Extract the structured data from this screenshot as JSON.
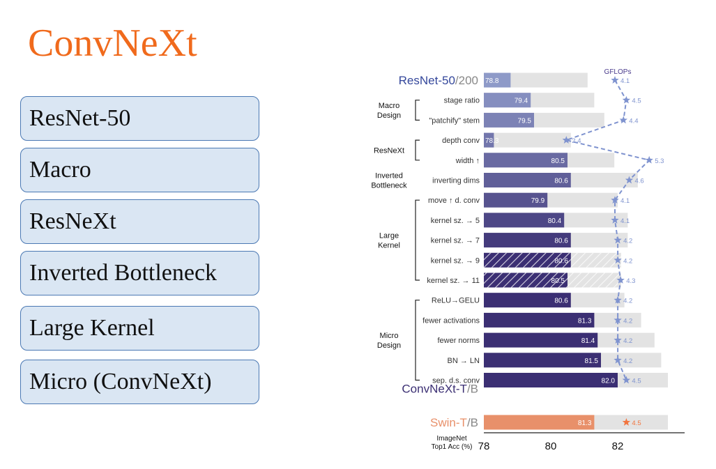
{
  "slide": {
    "title": "ConvNeXt",
    "title_color": "#f06a1c",
    "stages": [
      "ResNet-50",
      "Macro",
      "ResNeXt",
      "Inverted Bottleneck",
      "Large Kernel",
      "Micro (ConvNeXt)"
    ],
    "box_fill": "#dae6f3",
    "box_border": "#4a78b3"
  },
  "chart_data": {
    "type": "bar",
    "xlabel": "ImageNet Top1 Acc (%)",
    "xticks": [
      78,
      80,
      82
    ],
    "xlim": [
      78,
      84.3
    ],
    "gflops_label": "GFLOPs",
    "top_label": {
      "main": "ResNet-50",
      "suffix": "/200"
    },
    "bottom_label": {
      "main": "ConvNeXt-T",
      "suffix": "/B"
    },
    "swin_label": {
      "main": "Swin-T",
      "suffix": "/B"
    },
    "groups": [
      {
        "label": "Macro Design",
        "rows": [
          1,
          2
        ]
      },
      {
        "label": "ResNeXt",
        "rows": [
          3,
          4
        ]
      },
      {
        "label": "Inverted Bottleneck",
        "rows": [
          5
        ]
      },
      {
        "label": "Large Kernel",
        "rows": [
          6,
          7,
          8,
          9,
          10
        ]
      },
      {
        "label": "Micro Design",
        "rows": [
          11,
          12,
          13,
          14,
          15
        ]
      }
    ],
    "rows": [
      {
        "label": "",
        "tiny": 78.8,
        "base": 81.1,
        "gflops": 4.1,
        "hatched": false
      },
      {
        "label": "stage ratio",
        "tiny": 79.4,
        "base": 81.3,
        "gflops": 4.5,
        "hatched": false
      },
      {
        "label": "\"patchify\" stem",
        "tiny": 79.5,
        "base": 81.6,
        "gflops": 4.4,
        "hatched": false
      },
      {
        "label": "depth conv",
        "tiny": 78.3,
        "base": 80.6,
        "gflops": 2.4,
        "hatched": false
      },
      {
        "label": "width ↑",
        "tiny": 80.5,
        "base": 81.9,
        "gflops": 5.3,
        "hatched": false
      },
      {
        "label": "inverting dims",
        "tiny": 80.6,
        "base": 82.6,
        "gflops": 4.6,
        "hatched": false
      },
      {
        "label": "move ↑ d. conv",
        "tiny": 79.9,
        "base": 82.0,
        "gflops": 4.1,
        "hatched": false
      },
      {
        "label": "kernel sz. → 5",
        "tiny": 80.4,
        "base": 82.3,
        "gflops": 4.1,
        "hatched": false
      },
      {
        "label": "kernel sz. → 7",
        "tiny": 80.6,
        "base": 82.3,
        "gflops": 4.2,
        "hatched": false
      },
      {
        "label": "kernel sz. → 9",
        "tiny": 80.6,
        "base": 82.1,
        "gflops": 4.2,
        "hatched": true
      },
      {
        "label": "kernel sz. → 11",
        "tiny": 80.5,
        "base": 82.1,
        "gflops": 4.3,
        "hatched": true
      },
      {
        "label": "ReLU→GELU",
        "tiny": 80.6,
        "base": 82.2,
        "gflops": 4.2,
        "hatched": false
      },
      {
        "label": "fewer activations",
        "tiny": 81.3,
        "base": 82.7,
        "gflops": 4.2,
        "hatched": false
      },
      {
        "label": "fewer norms",
        "tiny": 81.4,
        "base": 83.1,
        "gflops": 4.2,
        "hatched": false
      },
      {
        "label": "BN → LN",
        "tiny": 81.5,
        "base": 83.3,
        "gflops": 4.2,
        "hatched": false
      },
      {
        "label": "sep. d.s. conv",
        "tiny": 82.0,
        "base": 83.5,
        "gflops": 4.5,
        "hatched": false
      }
    ],
    "swin": {
      "tiny": 81.3,
      "base": 83.5,
      "gflops": 4.5
    },
    "colors": {
      "bar_start": "#8e9ac8",
      "bar_end": "#3b2f73",
      "bar_bg": "#e3e3e3",
      "gflops_line": "#7f93cf",
      "swin_bar": "#e8906a",
      "swin_star": "#f2753f",
      "top_label": "#34479b",
      "bottom_label": "#3b2f73",
      "suffix_label": "#888888",
      "swin_label": "#e8906a",
      "gflops_title": "#4a3b8c"
    }
  }
}
